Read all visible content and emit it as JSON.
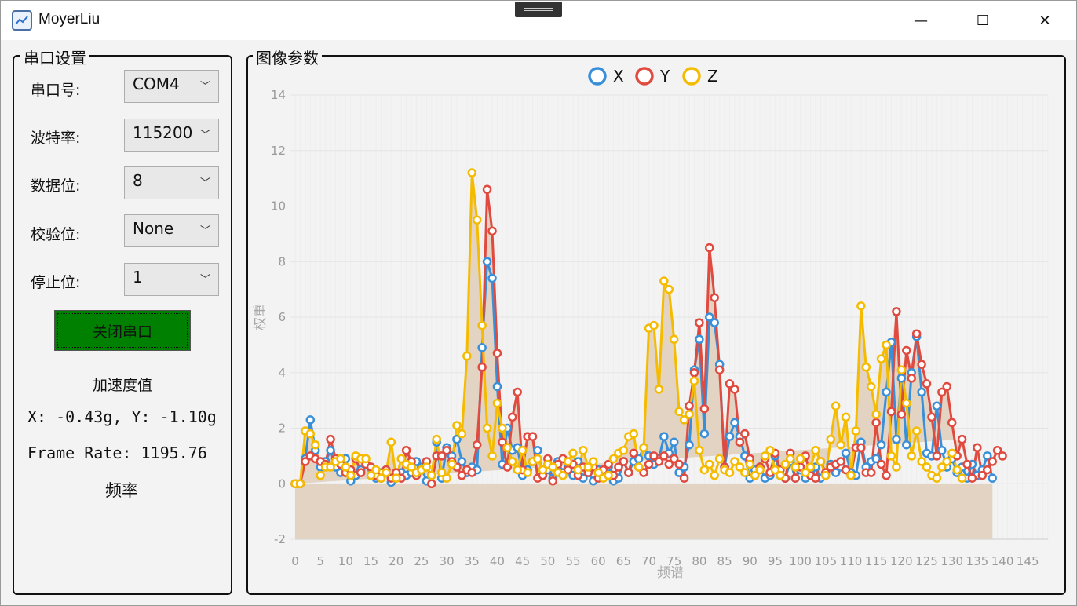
{
  "window": {
    "title": "MoyerLiu",
    "minimize_glyph": "—",
    "maximize_glyph": "☐",
    "close_glyph": "✕"
  },
  "serial": {
    "group_title": "串口设置",
    "port_label": "串口号:",
    "port_value": "COM4",
    "baud_label": "波特率:",
    "baud_value": "115200",
    "databits_label": "数据位:",
    "databits_value": "8",
    "parity_label": "校验位:",
    "parity_value": "None",
    "stopbits_label": "停止位:",
    "stopbits_value": "1",
    "close_button": "关闭串口",
    "accel_title": "加速度值",
    "accel_text": "X: -0.43g, Y: -1.10g",
    "frame_rate_text": "Frame Rate: 1195.76",
    "freq_label": "频率",
    "accent_color": "#008000"
  },
  "chart_panel": {
    "group_title": "图像参数"
  },
  "chart_data": {
    "type": "line",
    "xlabel": "频谱",
    "ylabel": "权重",
    "ylim": [
      -2,
      14
    ],
    "xlim": [
      0,
      149
    ],
    "yticks": [
      -2,
      0,
      2,
      4,
      6,
      8,
      10,
      12,
      14
    ],
    "xticks": [
      0,
      5,
      10,
      15,
      20,
      25,
      30,
      35,
      40,
      45,
      50,
      55,
      60,
      65,
      70,
      75,
      80,
      85,
      90,
      95,
      100,
      105,
      110,
      115,
      120,
      125,
      130,
      135,
      140,
      145
    ],
    "grid": true,
    "legend_position": "top-center",
    "area_fill": "#e2d3c2",
    "series": [
      {
        "name": "X",
        "color": "#3a8fd9",
        "values": [
          0,
          0,
          0.9,
          2.3,
          1.2,
          0.6,
          0.8,
          1.2,
          0.6,
          0.4,
          0.9,
          0.1,
          0.3,
          0.5,
          0.7,
          0.3,
          0.2,
          0.4,
          0.5,
          0.05,
          0.3,
          0.4,
          0.3,
          0.4,
          0.8,
          0.6,
          0.1,
          0.3,
          1.5,
          0.2,
          1.3,
          1.0,
          1.6,
          0.8,
          0.4,
          0.6,
          0.5,
          4.9,
          8.0,
          7.4,
          3.5,
          0.7,
          2.0,
          1.2,
          1.3,
          0.3,
          0.5,
          0.8,
          1.2,
          0.3,
          0.5,
          0.2,
          0.8,
          0.4,
          0.6,
          0.3,
          0.8,
          0.2,
          0.4,
          0.1,
          0.5,
          0.3,
          0.6,
          0.1,
          0.2,
          0.8,
          0.4,
          0.8,
          0.9,
          1.3,
          1.0,
          0.7,
          0.9,
          1.7,
          1.1,
          1.5,
          0.4,
          0.6,
          1.4,
          4.1,
          5.2,
          1.8,
          6.0,
          5.8,
          4.3,
          0.6,
          1.7,
          2.2,
          1.7,
          1.0,
          0.2,
          0.5,
          0.6,
          0.2,
          0.3,
          1.0,
          0.3,
          0.2,
          0.8,
          0.2,
          0.5,
          0.2,
          0.4,
          0.6,
          0.2,
          0.3,
          0.7,
          0.4,
          0.6,
          1.1,
          0.4,
          0.3,
          1.5,
          0.6,
          0.8,
          0.9,
          1.4,
          3.3,
          5.1,
          1.6,
          3.8,
          1.4,
          4.0,
          5.3,
          3.3,
          1.1,
          1.0,
          2.8,
          1.2,
          0.6,
          0.9,
          0.4,
          0.6,
          0.2,
          0.7,
          0.3,
          0.5,
          1.0,
          0.2
        ]
      },
      {
        "name": "Y",
        "color": "#e04a3f",
        "values": [
          0,
          0,
          0.8,
          1.0,
          0.9,
          0.8,
          0.7,
          1.6,
          0.9,
          0.7,
          0.4,
          0.5,
          0.9,
          0.4,
          0.7,
          0.6,
          0.3,
          0.2,
          0.5,
          0.2,
          0.4,
          0.2,
          1.2,
          0.8,
          0.3,
          0.5,
          0.8,
          0.0,
          1.0,
          1.0,
          1.2,
          0.8,
          0.6,
          0.3,
          0.5,
          0.4,
          1.4,
          4.2,
          10.6,
          9.1,
          4.7,
          1.5,
          0.6,
          2.4,
          3.3,
          0.5,
          1.7,
          1.7,
          0.2,
          0.3,
          0.9,
          0.1,
          0.7,
          0.9,
          0.5,
          0.7,
          0.3,
          0.6,
          0.4,
          0.6,
          0.2,
          0.5,
          0.7,
          0.3,
          0.6,
          0.8,
          0.4,
          1.1,
          0.6,
          0.4,
          0.7,
          1.0,
          0.8,
          1.0,
          0.7,
          0.9,
          0.7,
          0.2,
          2.8,
          4.0,
          5.8,
          2.7,
          8.5,
          6.7,
          4.1,
          0.6,
          3.6,
          3.4,
          1.5,
          1.8,
          0.9,
          0.3,
          0.6,
          0.9,
          0.4,
          1.1,
          0.5,
          0.2,
          1.1,
          0.2,
          0.6,
          1.0,
          0.3,
          0.2,
          0.8,
          0.4,
          0.6,
          0.7,
          0.8,
          0.5,
          0.3,
          1.3,
          1.3,
          0.4,
          0.4,
          2.2,
          0.7,
          0.3,
          2.6,
          6.2,
          2.5,
          4.8,
          3.8,
          5.4,
          4.3,
          3.6,
          2.4,
          1.0,
          3.3,
          3.5,
          2.2,
          1.0,
          1.6,
          0.7,
          0.2,
          1.3,
          0.3,
          0.5,
          0.8,
          1.2,
          1.0
        ]
      },
      {
        "name": "Z",
        "color": "#f5bb00",
        "values": [
          0,
          0,
          1.9,
          1.8,
          1.4,
          0.3,
          0.6,
          0.6,
          0.8,
          0.9,
          0.6,
          0.3,
          1.0,
          0.9,
          0.9,
          0.3,
          0.5,
          0.2,
          0.4,
          1.5,
          0.2,
          0.9,
          0.7,
          0.6,
          0.4,
          0.5,
          0.6,
          0.3,
          1.6,
          0.4,
          0.2,
          0.7,
          2.1,
          1.8,
          4.6,
          11.2,
          9.5,
          5.7,
          2.0,
          1.0,
          2.9,
          2.0,
          1.3,
          0.8,
          0.5,
          1.2,
          0.4,
          0.8,
          0.9,
          0.5,
          0.7,
          0.6,
          0.4,
          0.3,
          0.8,
          1.1,
          0.5,
          1.2,
          0.6,
          0.8,
          0.4,
          0.2,
          0.3,
          0.9,
          1.1,
          1.2,
          1.7,
          1.8,
          0.6,
          1.3,
          5.6,
          5.7,
          3.4,
          7.3,
          7.0,
          5.2,
          2.6,
          2.3,
          2.5,
          3.7,
          1.2,
          0.5,
          0.7,
          0.3,
          0.9,
          0.5,
          0.4,
          0.8,
          0.6,
          0.4,
          0.7,
          0.3,
          0.5,
          1.0,
          1.2,
          0.5,
          0.3,
          0.7,
          0.9,
          0.6,
          0.9,
          0.4,
          0.6,
          1.2,
          0.8,
          0.3,
          1.6,
          2.8,
          1.4,
          2.4,
          0.3,
          1.9,
          6.4,
          4.2,
          3.5,
          2.5,
          4.5,
          5.0,
          1.0,
          0.6,
          4.1,
          2.9,
          1.0,
          1.9,
          0.8,
          0.6,
          0.3,
          0.2,
          0.6,
          0.8,
          1.1,
          0.5,
          0.2
        ]
      }
    ]
  }
}
